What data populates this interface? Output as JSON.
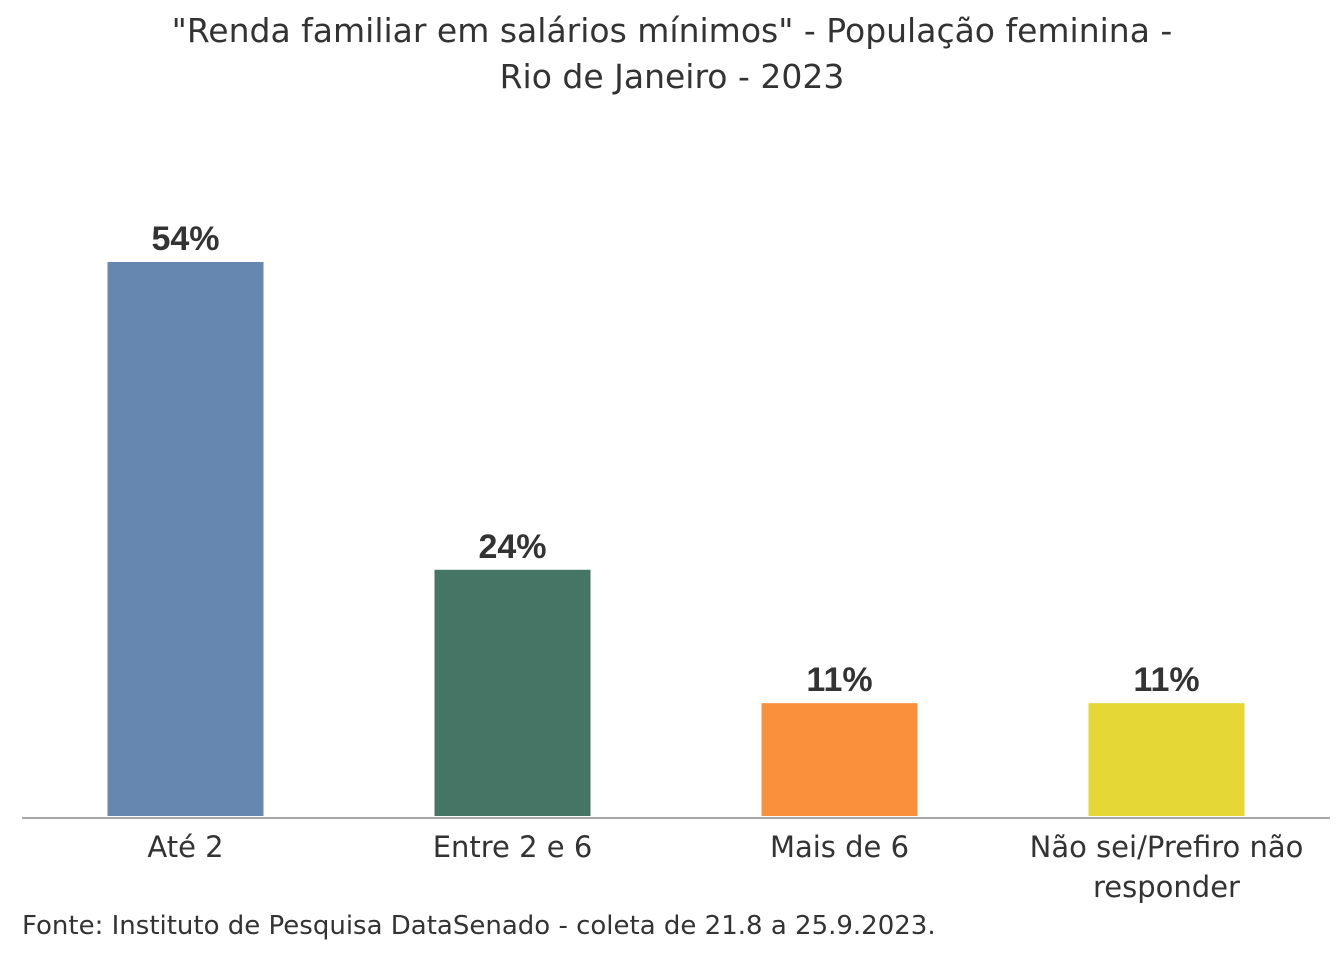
{
  "chart_data": {
    "type": "bar",
    "title_lines": [
      "\"Renda familiar em salários mínimos\" - População feminina -",
      "Rio de Janeiro - 2023"
    ],
    "categories": [
      [
        "Até 2"
      ],
      [
        "Entre 2 e 6"
      ],
      [
        "Mais de 6"
      ],
      [
        "Não sei/Prefiro não",
        "responder"
      ]
    ],
    "values": [
      54,
      24,
      11,
      11
    ],
    "value_labels": [
      "54%",
      "24%",
      "11%",
      "11%"
    ],
    "colors": [
      "#6688B0",
      "#457564",
      "#FA903C",
      "#E5D836"
    ],
    "ylim": [
      0,
      54
    ],
    "xlabel": "",
    "ylabel": "",
    "grid": false,
    "legend": "none"
  },
  "source": "Fonte: Instituto de Pesquisa DataSenado - coleta de 21.8 a 25.9.2023."
}
